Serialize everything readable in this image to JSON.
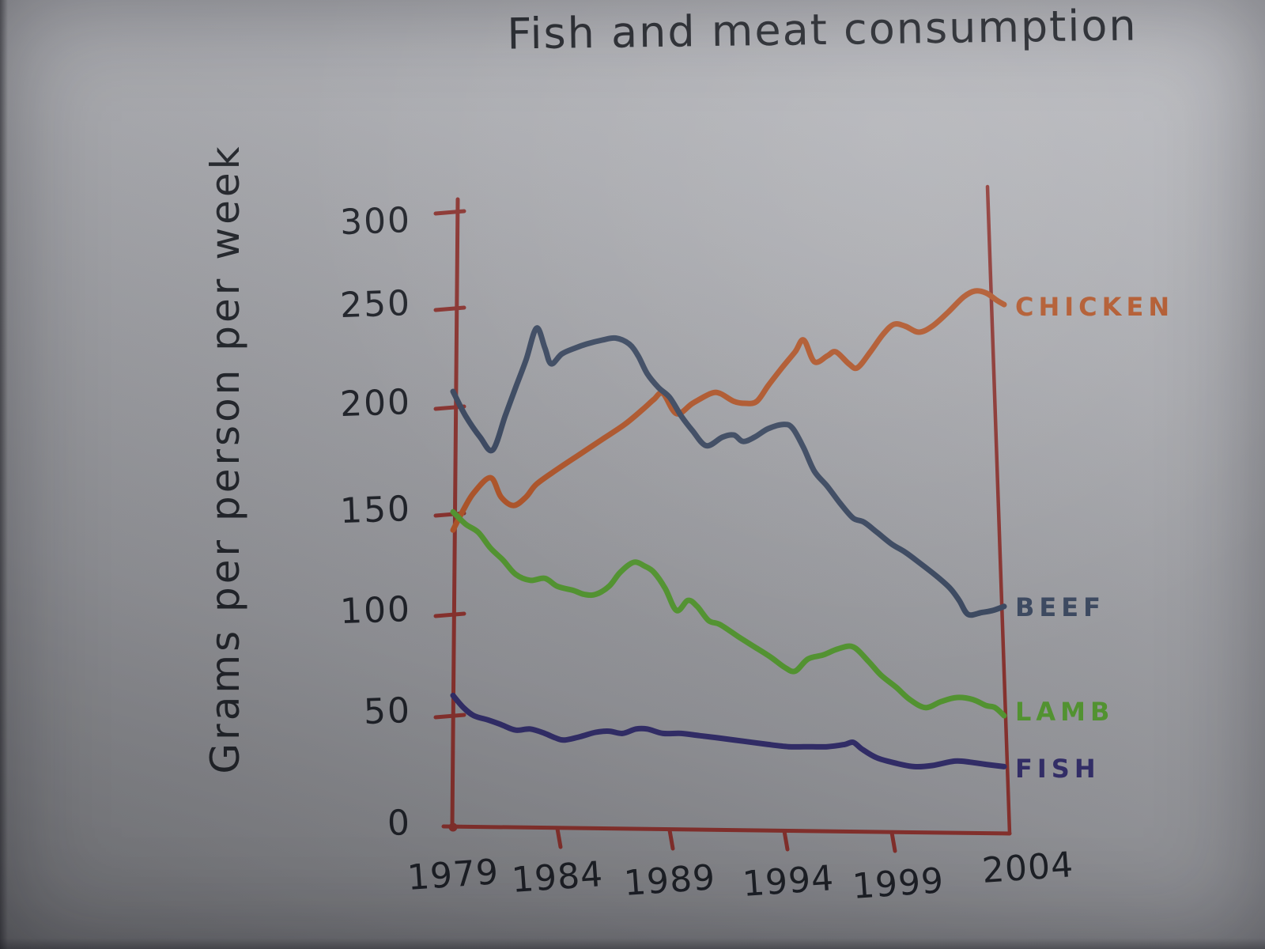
{
  "title": "Fish and meat consumption",
  "y_axis_label": "Grams per person per week",
  "colors": {
    "axis": "#8e3430",
    "ink": "#20232a"
  },
  "chart_data": {
    "type": "line",
    "title": "Fish and meat consumption",
    "ylabel": "Grams per person per week",
    "xlabel": "",
    "x_ticks": [
      1979,
      1984,
      1989,
      1994,
      1999,
      2004
    ],
    "y_ticks": [
      0,
      50,
      100,
      150,
      200,
      250,
      300
    ],
    "x_range": [
      1979,
      2004
    ],
    "y_range": [
      0,
      300
    ],
    "grid": false,
    "legend_position": "right of line ends",
    "units": "grams per person per week",
    "series": [
      {
        "name": "CHICKEN",
        "color": "#b5572a",
        "points": [
          [
            1979,
            142
          ],
          [
            1979.5,
            152
          ],
          [
            1980,
            160
          ],
          [
            1980.8,
            167
          ],
          [
            1981.3,
            158
          ],
          [
            1981.9,
            154
          ],
          [
            1982.5,
            158
          ],
          [
            1983,
            164
          ],
          [
            1984,
            171
          ],
          [
            1985,
            178
          ],
          [
            1986,
            185
          ],
          [
            1987,
            192
          ],
          [
            1987.8,
            199
          ],
          [
            1988.3,
            204
          ],
          [
            1988.7,
            207
          ],
          [
            1989.3,
            197
          ],
          [
            1990,
            202
          ],
          [
            1990.8,
            207
          ],
          [
            1991.2,
            207
          ],
          [
            1991.8,
            203
          ],
          [
            1992.3,
            202
          ],
          [
            1992.8,
            203
          ],
          [
            1993.3,
            211
          ],
          [
            1993.9,
            220
          ],
          [
            1994.5,
            228
          ],
          [
            1994.9,
            234
          ],
          [
            1995.4,
            223
          ],
          [
            1996,
            226
          ],
          [
            1996.4,
            228
          ],
          [
            1997,
            222
          ],
          [
            1997.4,
            220
          ],
          [
            1998,
            228
          ],
          [
            1998.6,
            237
          ],
          [
            1999.1,
            242
          ],
          [
            1999.6,
            241
          ],
          [
            2000.2,
            238
          ],
          [
            2000.8,
            241
          ],
          [
            2001.5,
            248
          ],
          [
            2002.2,
            256
          ],
          [
            2002.7,
            259
          ],
          [
            2003.2,
            258
          ],
          [
            2003.7,
            254
          ],
          [
            2004,
            252
          ]
        ]
      },
      {
        "name": "BEEF",
        "color": "#3c4a63",
        "points": [
          [
            1979,
            208
          ],
          [
            1979.6,
            196
          ],
          [
            1980.3,
            186
          ],
          [
            1980.9,
            180
          ],
          [
            1981.5,
            196
          ],
          [
            1982,
            210
          ],
          [
            1982.5,
            224
          ],
          [
            1983,
            240
          ],
          [
            1983.4,
            230
          ],
          [
            1983.7,
            222
          ],
          [
            1984.2,
            227
          ],
          [
            1984.8,
            230
          ],
          [
            1985.3,
            232
          ],
          [
            1986,
            234
          ],
          [
            1986.6,
            235
          ],
          [
            1987.2,
            232
          ],
          [
            1987.6,
            226
          ],
          [
            1988,
            217
          ],
          [
            1988.5,
            210
          ],
          [
            1989,
            205
          ],
          [
            1989.5,
            196
          ],
          [
            1990,
            189
          ],
          [
            1990.6,
            182
          ],
          [
            1991.3,
            186
          ],
          [
            1991.8,
            187
          ],
          [
            1992.2,
            184
          ],
          [
            1992.7,
            186
          ],
          [
            1993.3,
            190
          ],
          [
            1994,
            192
          ],
          [
            1994.4,
            190
          ],
          [
            1994.9,
            181
          ],
          [
            1995.4,
            170
          ],
          [
            1996,
            163
          ],
          [
            1996.6,
            155
          ],
          [
            1997.2,
            148
          ],
          [
            1997.7,
            146
          ],
          [
            1998.3,
            141
          ],
          [
            1999,
            135
          ],
          [
            1999.6,
            131
          ],
          [
            2000.2,
            126
          ],
          [
            2001,
            119
          ],
          [
            2001.6,
            113
          ],
          [
            2002,
            107
          ],
          [
            2002.4,
            100
          ],
          [
            2003,
            101
          ],
          [
            2003.5,
            102
          ],
          [
            2004,
            104
          ]
        ]
      },
      {
        "name": "LAMB",
        "color": "#579c33",
        "points": [
          [
            1979,
            151
          ],
          [
            1979.6,
            145
          ],
          [
            1980.2,
            141
          ],
          [
            1980.8,
            133
          ],
          [
            1981.4,
            127
          ],
          [
            1982,
            120
          ],
          [
            1982.7,
            117
          ],
          [
            1983.4,
            118
          ],
          [
            1984,
            114
          ],
          [
            1984.7,
            112
          ],
          [
            1985.2,
            110
          ],
          [
            1985.7,
            110
          ],
          [
            1986.3,
            114
          ],
          [
            1986.8,
            121
          ],
          [
            1987.4,
            126
          ],
          [
            1987.9,
            124
          ],
          [
            1988.3,
            121
          ],
          [
            1988.8,
            113
          ],
          [
            1989.3,
            102
          ],
          [
            1989.8,
            107
          ],
          [
            1990.2,
            104
          ],
          [
            1990.7,
            97
          ],
          [
            1991.2,
            95
          ],
          [
            1992,
            89
          ],
          [
            1992.7,
            84
          ],
          [
            1993.4,
            79
          ],
          [
            1994,
            74
          ],
          [
            1994.5,
            72
          ],
          [
            1995.1,
            78
          ],
          [
            1995.8,
            80
          ],
          [
            1996.5,
            83
          ],
          [
            1997.2,
            84
          ],
          [
            1997.9,
            77
          ],
          [
            1998.5,
            70
          ],
          [
            1999.2,
            64
          ],
          [
            1999.8,
            58
          ],
          [
            2000.5,
            54
          ],
          [
            2001.2,
            57
          ],
          [
            2001.9,
            59
          ],
          [
            2002.6,
            58
          ],
          [
            2003.2,
            55
          ],
          [
            2003.6,
            54
          ],
          [
            2004,
            50
          ]
        ]
      },
      {
        "name": "FISH",
        "color": "#35306e",
        "points": [
          [
            1979,
            60
          ],
          [
            1979.5,
            54
          ],
          [
            1980,
            50
          ],
          [
            1980.7,
            48
          ],
          [
            1981.3,
            46
          ],
          [
            1982,
            43.5
          ],
          [
            1982.7,
            44
          ],
          [
            1983.4,
            42
          ],
          [
            1983.9,
            40
          ],
          [
            1984.3,
            39
          ],
          [
            1985,
            40.5
          ],
          [
            1985.7,
            42.5
          ],
          [
            1986.3,
            43
          ],
          [
            1986.9,
            42
          ],
          [
            1987.5,
            44
          ],
          [
            1988,
            44
          ],
          [
            1988.7,
            42
          ],
          [
            1989.5,
            42
          ],
          [
            1990.3,
            41
          ],
          [
            1991.1,
            40
          ],
          [
            1992.2,
            38.5
          ],
          [
            1993.3,
            37
          ],
          [
            1994.2,
            36
          ],
          [
            1995,
            36
          ],
          [
            1996,
            36
          ],
          [
            1996.8,
            37
          ],
          [
            1997.2,
            38
          ],
          [
            1997.6,
            35
          ],
          [
            1998.3,
            31
          ],
          [
            1999.2,
            28.5
          ],
          [
            2000,
            27
          ],
          [
            2000.8,
            27.5
          ],
          [
            2001.8,
            29.5
          ],
          [
            2002.5,
            29
          ],
          [
            2003.2,
            28
          ],
          [
            2004,
            27
          ]
        ]
      }
    ]
  }
}
